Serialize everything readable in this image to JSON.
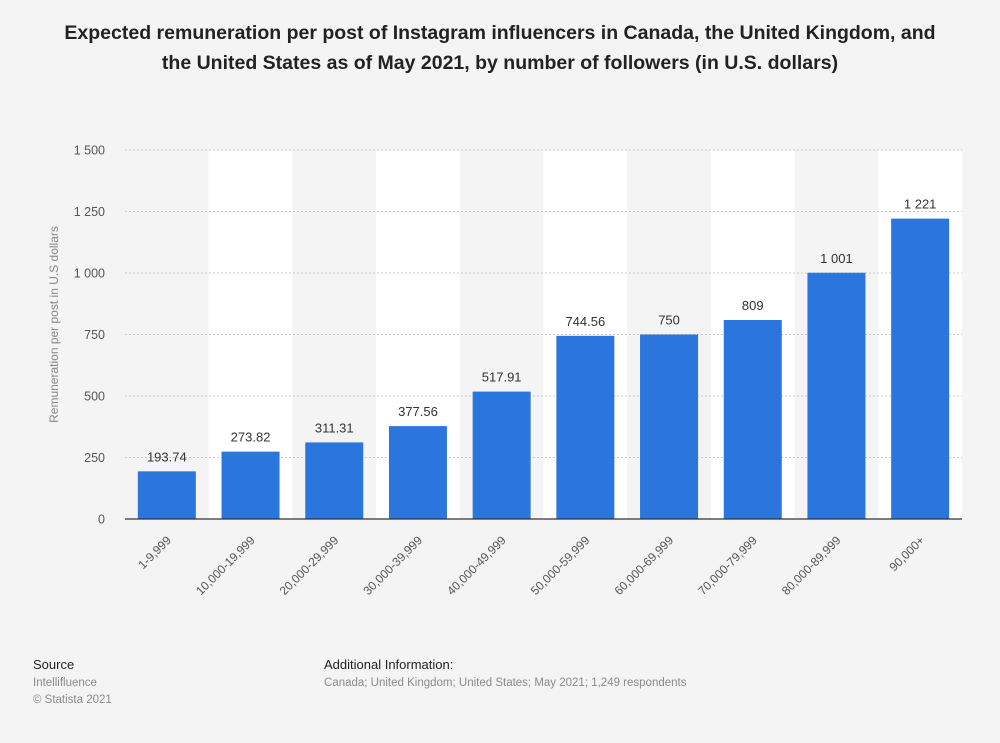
{
  "chart_data": {
    "type": "bar",
    "title": "Expected remuneration per post of Instagram influencers in Canada, the United Kingdom, and the United States as of May 2021, by number of followers (in U.S. dollars)",
    "categories": [
      "1-9,999",
      "10,000-19,999",
      "20,000-29,999",
      "30,000-39,999",
      "40,000-49,999",
      "50,000-59,999",
      "60,000-69,999",
      "70,000-79,999",
      "80,000-89,999",
      "90,000+"
    ],
    "values": [
      193.74,
      273.82,
      311.31,
      377.56,
      517.91,
      744.56,
      750,
      809,
      1001,
      1221
    ],
    "value_labels": [
      "193.74",
      "273.82",
      "311.31",
      "377.56",
      "517.91",
      "744.56",
      "750",
      "809",
      "1 001",
      "1 221"
    ],
    "xlabel": "",
    "ylabel": "Remuneration per post in U.S dollars",
    "ylim": [
      0,
      1500
    ],
    "yticks": [
      0,
      250,
      500,
      750,
      1000,
      1250,
      1500
    ],
    "ytick_labels": [
      "0",
      "250",
      "500",
      "750",
      "1 000",
      "1 250",
      "1 500"
    ],
    "grid": true,
    "bar_color": "#2a76dd"
  },
  "footer": {
    "source_heading": "Source",
    "source_name": "Intellifluence",
    "copyright": "© Statista 2021",
    "info_heading": "Additional Information:",
    "info_text": "Canada; United Kingdom; United States; May 2021; 1,249 respondents"
  }
}
